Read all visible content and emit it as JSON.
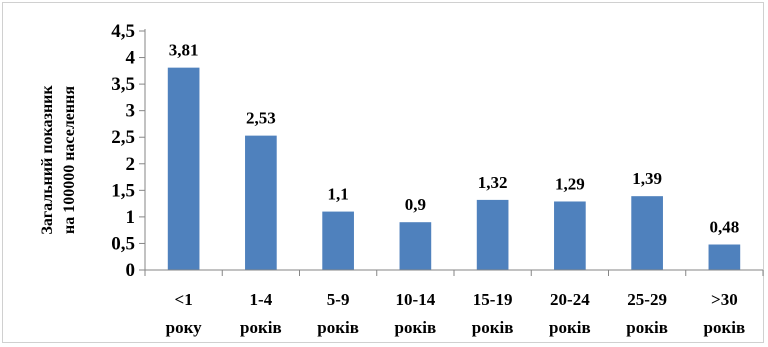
{
  "chart_data": {
    "type": "bar",
    "title": "",
    "xlabel": "",
    "ylabel_lines": [
      "Загальний показник",
      "на 100000 населення"
    ],
    "categories": [
      [
        "<1",
        "року"
      ],
      [
        "1-4",
        "років"
      ],
      [
        "5-9",
        "років"
      ],
      [
        "10-14",
        "років"
      ],
      [
        "15-19",
        "років"
      ],
      [
        "20-24",
        "років"
      ],
      [
        "25-29",
        "років"
      ],
      [
        ">30",
        "років"
      ]
    ],
    "values": [
      3.81,
      2.53,
      1.1,
      0.9,
      1.32,
      1.29,
      1.39,
      0.48
    ],
    "data_labels": [
      "3,81",
      "2,53",
      "1,1",
      "0,9",
      "1,32",
      "1,29",
      "1,39",
      "0,48"
    ],
    "y_ticks": [
      0,
      0.5,
      1,
      1.5,
      2,
      2.5,
      3,
      3.5,
      4,
      4.5
    ],
    "y_tick_labels": [
      "0",
      "0,5",
      "1",
      "1,5",
      "2",
      "2,5",
      "3",
      "3,5",
      "4",
      "4,5"
    ],
    "ylim": [
      0,
      4.5
    ],
    "grid": false,
    "legend": "none",
    "bar_color": "#4f81bd",
    "axis_color": "#868686"
  }
}
